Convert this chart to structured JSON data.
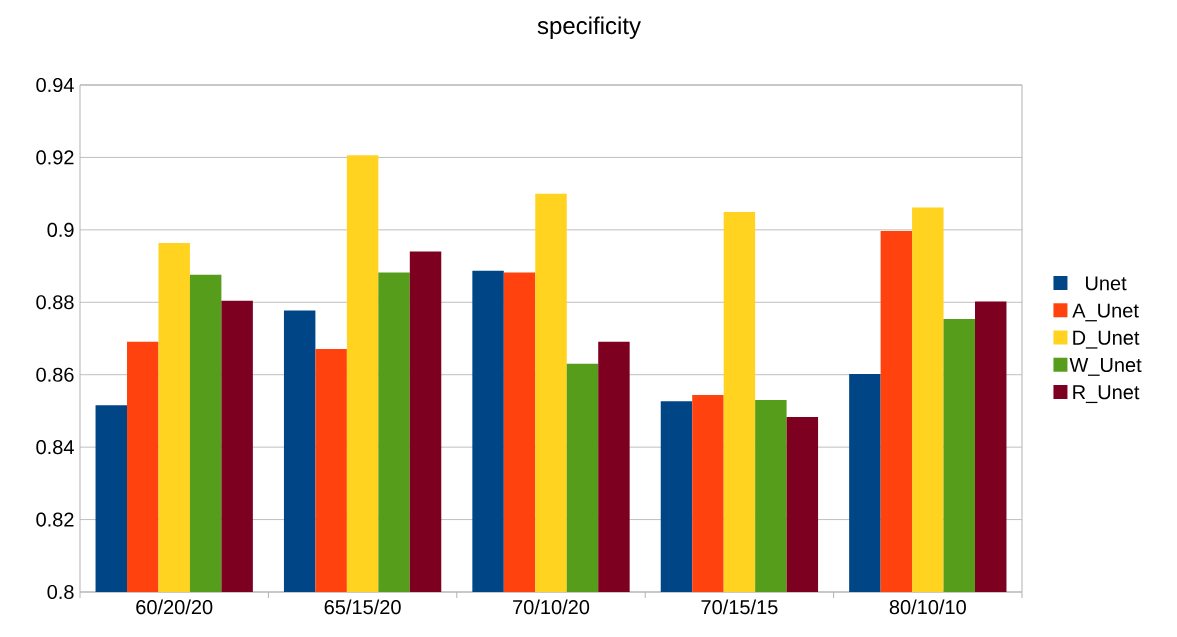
{
  "chart_data": {
    "type": "bar",
    "title": "specificity",
    "categories": [
      "60/20/20",
      "65/15/20",
      "70/10/20",
      "70/15/15",
      "80/10/10"
    ],
    "series": [
      {
        "name": "Unet",
        "color": "#004586",
        "values": [
          0.8516,
          0.8777,
          0.8887,
          0.8527,
          0.8602
        ]
      },
      {
        "name": "A_Unet",
        "color": "#ff420e",
        "values": [
          0.8691,
          0.8671,
          0.8882,
          0.8544,
          0.8997
        ]
      },
      {
        "name": "D_Unet",
        "color": "#ffd320",
        "values": [
          0.8964,
          0.9206,
          0.91,
          0.9049,
          0.9062
        ]
      },
      {
        "name": "W_Unet",
        "color": "#579d1c",
        "values": [
          0.8876,
          0.8882,
          0.863,
          0.853,
          0.8754
        ]
      },
      {
        "name": "R_Unet",
        "color": "#7e0021",
        "values": [
          0.8804,
          0.894,
          0.8691,
          0.8483,
          0.8802
        ]
      }
    ],
    "ylim": [
      0.8,
      0.94
    ],
    "yticks": [
      0.8,
      0.82,
      0.84,
      0.86,
      0.88,
      0.9,
      0.92,
      0.94
    ],
    "grid": "y",
    "legend": "right"
  }
}
